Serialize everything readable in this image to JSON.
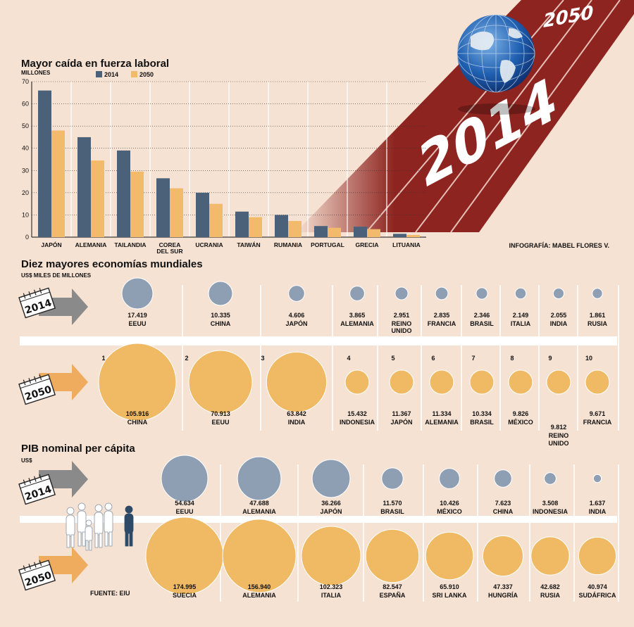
{
  "track": {
    "label_2014": "2014",
    "label_2050": "2050"
  },
  "credit": "INFOGRAFÍA: MABEL FLORES V.",
  "source": "FUENTE: EIU",
  "colors": {
    "c2014": "#4a6179",
    "c2050": "#f1bb6b",
    "bubble2014": "#8f9fb3",
    "bubble2050": "#efba63",
    "track": "#8e2420",
    "rank": "#b9c3cd"
  },
  "chart_data": [
    {
      "type": "bar",
      "title": "Mayor caída en fuerza laboral",
      "ylabel": "MILLONES",
      "ylim": [
        0,
        70
      ],
      "yticks": [
        "0",
        "10",
        "20",
        "30",
        "40",
        "50",
        "60",
        "70"
      ],
      "categories": [
        "JAPÓN",
        "ALEMANIA",
        "TAILANDIA",
        "COREA DEL SUR",
        "UCRANIA",
        "TAIWÁN",
        "RUMANIA",
        "PORTUGAL",
        "GRECIA",
        "LITUANIA"
      ],
      "series": [
        {
          "name": "2014",
          "values": [
            66,
            45,
            39,
            26.5,
            20,
            11.5,
            10,
            5,
            4.7,
            1.5
          ]
        },
        {
          "name": "2050",
          "values": [
            48,
            34.5,
            29.5,
            22,
            15,
            9,
            7.3,
            4.2,
            3.6,
            1
          ]
        }
      ]
    },
    {
      "type": "bubble",
      "title": "Diez mayores economías mundiales",
      "unit": "US$ MILES DE MILLONES",
      "years": [
        "2014",
        "2050"
      ],
      "ranks": [
        "1",
        "2",
        "3",
        "4",
        "5",
        "6",
        "7",
        "8",
        "9",
        "10"
      ],
      "y2014": [
        {
          "country": "EEUU",
          "value": 17419,
          "label": "17.419"
        },
        {
          "country": "CHINA",
          "value": 10335,
          "label": "10.335"
        },
        {
          "country": "JAPÓN",
          "value": 4606,
          "label": "4.606"
        },
        {
          "country": "ALEMANIA",
          "value": 3865,
          "label": "3.865"
        },
        {
          "country": "REINO UNIDO",
          "value": 2951,
          "label": "2.951"
        },
        {
          "country": "FRANCIA",
          "value": 2835,
          "label": "2.835"
        },
        {
          "country": "BRASIL",
          "value": 2346,
          "label": "2.346"
        },
        {
          "country": "ITALIA",
          "value": 2149,
          "label": "2.149"
        },
        {
          "country": "INDIA",
          "value": 2055,
          "label": "2.055"
        },
        {
          "country": "RUSIA",
          "value": 1861,
          "label": "1.861"
        }
      ],
      "y2050": [
        {
          "country": "CHINA",
          "value": 105916,
          "label": "105.916"
        },
        {
          "country": "EEUU",
          "value": 70913,
          "label": "70.913"
        },
        {
          "country": "INDIA",
          "value": 63842,
          "label": "63.842"
        },
        {
          "country": "INDONESIA",
          "value": 15432,
          "label": "15.432"
        },
        {
          "country": "JAPÓN",
          "value": 11367,
          "label": "11.367"
        },
        {
          "country": "ALEMANIA",
          "value": 11334,
          "label": "11.334"
        },
        {
          "country": "BRASIL",
          "value": 10334,
          "label": "10.334"
        },
        {
          "country": "MÉXICO",
          "value": 9826,
          "label": "9.826"
        },
        {
          "country": "REINO UNIDO",
          "value": 9812,
          "label": "9.812"
        },
        {
          "country": "FRANCIA",
          "value": 9671,
          "label": "9.671"
        }
      ]
    },
    {
      "type": "bubble",
      "title": "PIB nominal per cápita",
      "unit": "US$",
      "years": [
        "2014",
        "2050"
      ],
      "y2014": [
        {
          "country": "EEUU",
          "value": 54634,
          "label": "54.634"
        },
        {
          "country": "ALEMANIA",
          "value": 47688,
          "label": "47.688"
        },
        {
          "country": "JAPÓN",
          "value": 36266,
          "label": "36.266"
        },
        {
          "country": "BRASIL",
          "value": 11570,
          "label": "11.570"
        },
        {
          "country": "MÉXICO",
          "value": 10426,
          "label": "10.426"
        },
        {
          "country": "CHINA",
          "value": 7623,
          "label": "7.623"
        },
        {
          "country": "INDONESIA",
          "value": 3508,
          "label": "3.508"
        },
        {
          "country": "INDIA",
          "value": 1637,
          "label": "1.637"
        }
      ],
      "y2050": [
        {
          "country": "SUECIA",
          "value": 174995,
          "label": "174.995"
        },
        {
          "country": "ALEMANIA",
          "value": 156940,
          "label": "156.940"
        },
        {
          "country": "ITALIA",
          "value": 102323,
          "label": "102.323"
        },
        {
          "country": "ESPAÑA",
          "value": 82547,
          "label": "82.547"
        },
        {
          "country": "SRI LANKA",
          "value": 65910,
          "label": "65.910"
        },
        {
          "country": "HUNGRÍA",
          "value": 47337,
          "label": "47.337"
        },
        {
          "country": "RUSIA",
          "value": 42682,
          "label": "42.682"
        },
        {
          "country": "SUDÁFRICA",
          "value": 40974,
          "label": "40.974"
        }
      ]
    }
  ]
}
